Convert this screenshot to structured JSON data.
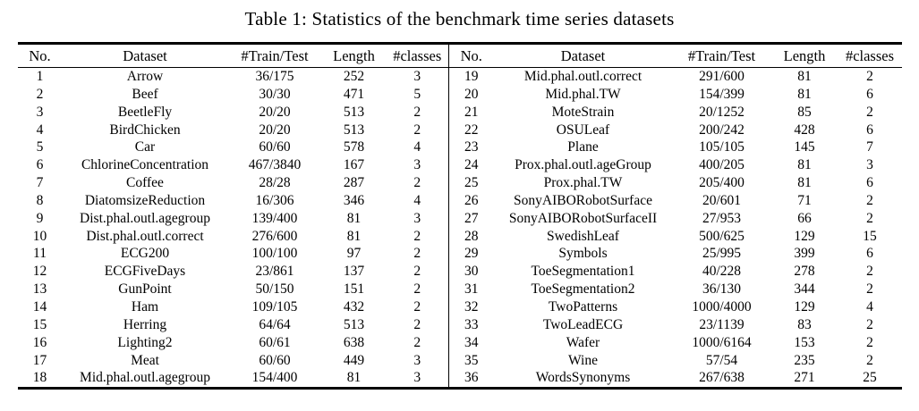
{
  "caption": "Table 1: Statistics of the benchmark time series datasets",
  "colors": {
    "background": "#ffffff",
    "text": "#000000",
    "rule": "#000000"
  },
  "table": {
    "columns": [
      "No.",
      "Dataset",
      "#Train/Test",
      "Length",
      "#classes"
    ],
    "left_rows": [
      [
        "1",
        "Arrow",
        "36/175",
        "252",
        "3"
      ],
      [
        "2",
        "Beef",
        "30/30",
        "471",
        "5"
      ],
      [
        "3",
        "BeetleFly",
        "20/20",
        "513",
        "2"
      ],
      [
        "4",
        "BirdChicken",
        "20/20",
        "513",
        "2"
      ],
      [
        "5",
        "Car",
        "60/60",
        "578",
        "4"
      ],
      [
        "6",
        "ChlorineConcentration",
        "467/3840",
        "167",
        "3"
      ],
      [
        "7",
        "Coffee",
        "28/28",
        "287",
        "2"
      ],
      [
        "8",
        "DiatomsizeReduction",
        "16/306",
        "346",
        "4"
      ],
      [
        "9",
        "Dist.phal.outl.agegroup",
        "139/400",
        "81",
        "3"
      ],
      [
        "10",
        "Dist.phal.outl.correct",
        "276/600",
        "81",
        "2"
      ],
      [
        "11",
        "ECG200",
        "100/100",
        "97",
        "2"
      ],
      [
        "12",
        "ECGFiveDays",
        "23/861",
        "137",
        "2"
      ],
      [
        "13",
        "GunPoint",
        "50/150",
        "151",
        "2"
      ],
      [
        "14",
        "Ham",
        "109/105",
        "432",
        "2"
      ],
      [
        "15",
        "Herring",
        "64/64",
        "513",
        "2"
      ],
      [
        "16",
        "Lighting2",
        "60/61",
        "638",
        "2"
      ],
      [
        "17",
        "Meat",
        "60/60",
        "449",
        "3"
      ],
      [
        "18",
        "Mid.phal.outl.agegroup",
        "154/400",
        "81",
        "3"
      ]
    ],
    "right_rows": [
      [
        "19",
        "Mid.phal.outl.correct",
        "291/600",
        "81",
        "2"
      ],
      [
        "20",
        "Mid.phal.TW",
        "154/399",
        "81",
        "6"
      ],
      [
        "21",
        "MoteStrain",
        "20/1252",
        "85",
        "2"
      ],
      [
        "22",
        "OSULeaf",
        "200/242",
        "428",
        "6"
      ],
      [
        "23",
        "Plane",
        "105/105",
        "145",
        "7"
      ],
      [
        "24",
        "Prox.phal.outl.ageGroup",
        "400/205",
        "81",
        "3"
      ],
      [
        "25",
        "Prox.phal.TW",
        "205/400",
        "81",
        "6"
      ],
      [
        "26",
        "SonyAIBORobotSurface",
        "20/601",
        "71",
        "2"
      ],
      [
        "27",
        "SonyAIBORobotSurfaceII",
        "27/953",
        "66",
        "2"
      ],
      [
        "28",
        "SwedishLeaf",
        "500/625",
        "129",
        "15"
      ],
      [
        "29",
        "Symbols",
        "25/995",
        "399",
        "6"
      ],
      [
        "30",
        "ToeSegmentation1",
        "40/228",
        "278",
        "2"
      ],
      [
        "31",
        "ToeSegmentation2",
        "36/130",
        "344",
        "2"
      ],
      [
        "32",
        "TwoPatterns",
        "1000/4000",
        "129",
        "4"
      ],
      [
        "33",
        "TwoLeadECG",
        "23/1139",
        "83",
        "2"
      ],
      [
        "34",
        "Wafer",
        "1000/6164",
        "153",
        "2"
      ],
      [
        "35",
        "Wine",
        "57/54",
        "235",
        "2"
      ],
      [
        "36",
        "WordsSynonyms",
        "267/638",
        "271",
        "25"
      ]
    ]
  }
}
